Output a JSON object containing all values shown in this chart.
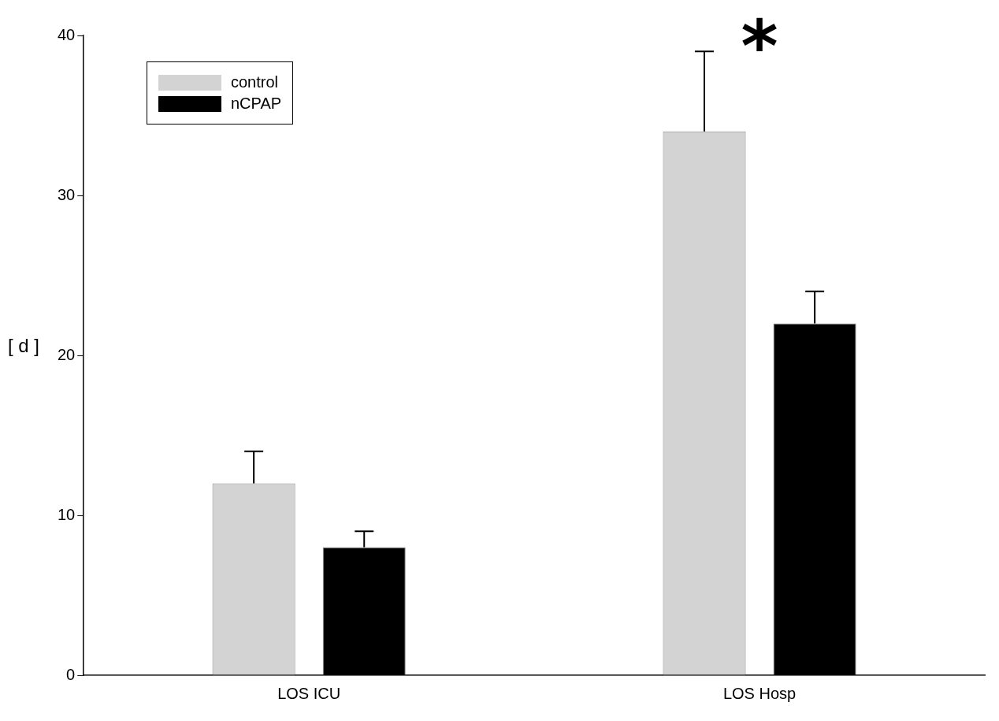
{
  "chart_data": {
    "type": "bar",
    "ylabel": "[ d ]",
    "categories": [
      "LOS ICU",
      "LOS Hosp"
    ],
    "series": [
      {
        "name": "control",
        "color": "#d3d3d3",
        "values": [
          12,
          34
        ],
        "errors": [
          [
            12,
            14
          ],
          [
            34,
            39
          ]
        ]
      },
      {
        "name": "nCPAP",
        "color": "#000000",
        "values": [
          8,
          22
        ],
        "errors": [
          [
            8,
            9
          ],
          [
            22,
            24
          ]
        ]
      }
    ],
    "ylim": [
      0,
      40
    ],
    "yticks": [
      0,
      10,
      20,
      30,
      40
    ],
    "grid": false,
    "legend": "top left",
    "annotations": [
      "*"
    ]
  }
}
